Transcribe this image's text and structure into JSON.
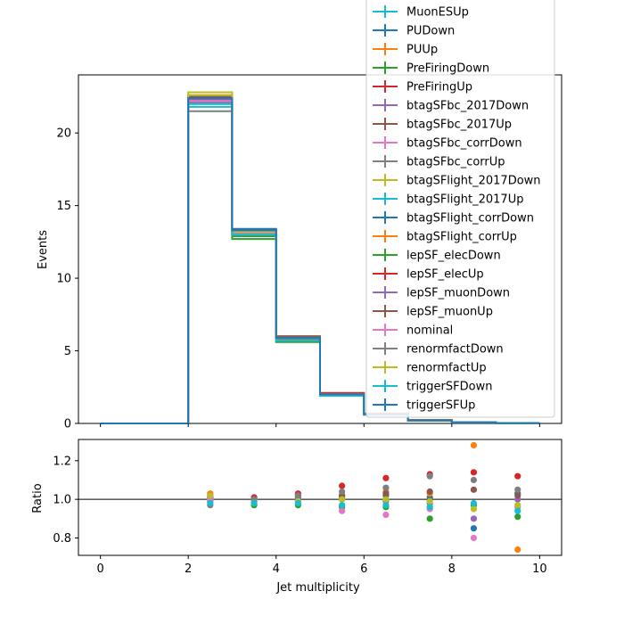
{
  "chart_data": [
    {
      "type": "line",
      "panel": "main",
      "step": true,
      "xlabel": "",
      "ylabel": "Events",
      "xlim": [
        -0.5,
        10.5
      ],
      "ylim": [
        0,
        24
      ],
      "yticks": [
        0,
        5,
        10,
        15,
        20
      ],
      "bin_edges": [
        0,
        1,
        2,
        3,
        4,
        5,
        6,
        7,
        8,
        9,
        10
      ],
      "legend_placement": "upper right (extends above plot)",
      "series": [
        {
          "name": "MuonESUp",
          "color": "#17becf",
          "values": [
            0,
            0,
            22.2,
            13.1,
            5.8,
            2.0,
            0.62,
            0.21,
            0.07,
            0.02
          ]
        },
        {
          "name": "PUDown",
          "color": "#1f77b4",
          "values": [
            0,
            0,
            22.5,
            13.3,
            5.9,
            2.0,
            0.63,
            0.21,
            0.07,
            0.02
          ]
        },
        {
          "name": "PUUp",
          "color": "#ff7f0e",
          "values": [
            0,
            0,
            22.3,
            13.2,
            5.9,
            2.0,
            0.64,
            0.22,
            0.08,
            0.02
          ]
        },
        {
          "name": "PreFiringDown",
          "color": "#2ca02c",
          "values": [
            0,
            0,
            22.0,
            12.7,
            5.6,
            1.9,
            0.6,
            0.19,
            0.07,
            0.02
          ]
        },
        {
          "name": "PreFiringUp",
          "color": "#d62728",
          "values": [
            0,
            0,
            22.6,
            13.3,
            6.0,
            2.1,
            0.68,
            0.24,
            0.08,
            0.02
          ]
        },
        {
          "name": "btagSFbc_2017Down",
          "color": "#9467bd",
          "values": [
            0,
            0,
            22.3,
            13.1,
            5.9,
            2.0,
            0.62,
            0.2,
            0.06,
            0.02
          ]
        },
        {
          "name": "btagSFbc_2017Up",
          "color": "#8c564b",
          "values": [
            0,
            0,
            22.4,
            13.2,
            6.0,
            2.0,
            0.64,
            0.22,
            0.07,
            0.02
          ]
        },
        {
          "name": "btagSFbc_corrDown",
          "color": "#e377c2",
          "values": [
            0,
            0,
            22.1,
            13.0,
            5.8,
            1.9,
            0.6,
            0.2,
            0.06,
            0.02
          ]
        },
        {
          "name": "btagSFbc_corrUp",
          "color": "#7f7f7f",
          "values": [
            0,
            0,
            21.5,
            13.0,
            5.9,
            2.0,
            0.65,
            0.22,
            0.08,
            0.02
          ]
        },
        {
          "name": "btagSFlight_2017Down",
          "color": "#bcbd22",
          "values": [
            0,
            0,
            22.8,
            13.0,
            5.8,
            2.0,
            0.62,
            0.21,
            0.07,
            0.02
          ]
        },
        {
          "name": "btagSFlight_2017Up",
          "color": "#17becf",
          "values": [
            0,
            0,
            21.8,
            12.9,
            5.7,
            1.9,
            0.61,
            0.2,
            0.07,
            0.02
          ]
        },
        {
          "name": "btagSFlight_corrDown",
          "color": "#1f77b4",
          "values": [
            0,
            0,
            22.4,
            13.4,
            5.9,
            2.0,
            0.62,
            0.21,
            0.07,
            0.02
          ]
        },
        {
          "name": "btagSFlight_corrUp",
          "color": "#ff7f0e",
          "values": [
            0,
            0,
            22.2,
            13.1,
            5.8,
            2.0,
            0.62,
            0.21,
            0.07,
            0.02
          ]
        },
        {
          "name": "lepSF_elecDown",
          "color": "#2ca02c",
          "values": [
            0,
            0,
            22.1,
            12.9,
            5.7,
            1.9,
            0.61,
            0.2,
            0.07,
            0.02
          ]
        },
        {
          "name": "lepSF_elecUp",
          "color": "#d62728",
          "values": [
            0,
            0,
            22.4,
            13.2,
            5.9,
            2.0,
            0.63,
            0.21,
            0.07,
            0.02
          ]
        },
        {
          "name": "lepSF_muonDown",
          "color": "#9467bd",
          "values": [
            0,
            0,
            22.1,
            13.0,
            5.8,
            1.9,
            0.61,
            0.2,
            0.07,
            0.02
          ]
        },
        {
          "name": "lepSF_muonUp",
          "color": "#8c564b",
          "values": [
            0,
            0,
            22.5,
            13.3,
            5.9,
            2.0,
            0.63,
            0.21,
            0.07,
            0.02
          ]
        },
        {
          "name": "nominal",
          "color": "#e377c2",
          "values": [
            0,
            0,
            22.2,
            13.1,
            5.8,
            2.0,
            0.62,
            0.21,
            0.07,
            0.02
          ]
        },
        {
          "name": "renormfactDown",
          "color": "#7f7f7f",
          "values": [
            0,
            0,
            22.0,
            13.0,
            5.8,
            1.9,
            0.61,
            0.2,
            0.07,
            0.02
          ]
        },
        {
          "name": "renormfactUp",
          "color": "#bcbd22",
          "values": [
            0,
            0,
            22.6,
            13.2,
            5.9,
            2.0,
            0.63,
            0.21,
            0.07,
            0.02
          ]
        },
        {
          "name": "triggerSFDown",
          "color": "#17becf",
          "values": [
            0,
            0,
            22.0,
            13.0,
            5.7,
            1.9,
            0.61,
            0.2,
            0.07,
            0.02
          ]
        },
        {
          "name": "triggerSFUp",
          "color": "#1f77b4",
          "values": [
            0,
            0,
            22.4,
            13.3,
            5.9,
            2.0,
            0.63,
            0.21,
            0.07,
            0.02
          ]
        }
      ]
    },
    {
      "type": "scatter",
      "panel": "ratio",
      "xlabel": "Jet multiplicity",
      "ylabel": "Ratio",
      "xlim": [
        -0.5,
        10.5
      ],
      "ylim": [
        0.71,
        1.31
      ],
      "xticks": [
        0,
        2,
        4,
        6,
        8,
        10
      ],
      "yticks": [
        0.8,
        1.0,
        1.2
      ],
      "reference_line": 1.0,
      "x": [
        2.5,
        3.5,
        4.5,
        5.5,
        6.5,
        7.5,
        8.5,
        9.5
      ],
      "series": [
        {
          "color": "#1f77b4",
          "values": [
            1.01,
            1.01,
            1.02,
            1.01,
            1.02,
            1.01,
            0.85,
            1.03
          ]
        },
        {
          "color": "#ff7f0e",
          "values": [
            1.03,
            1.0,
            1.01,
            1.02,
            1.04,
            1.03,
            1.28,
            0.74
          ]
        },
        {
          "color": "#2ca02c",
          "values": [
            0.99,
            0.97,
            0.97,
            0.96,
            0.96,
            0.9,
            0.97,
            0.91
          ]
        },
        {
          "color": "#d62728",
          "values": [
            1.02,
            1.01,
            1.03,
            1.07,
            1.11,
            1.13,
            1.14,
            1.12
          ]
        },
        {
          "color": "#9467bd",
          "values": [
            1.0,
            0.99,
            1.01,
            1.0,
            0.99,
            0.98,
            0.9,
            1.0
          ]
        },
        {
          "color": "#8c564b",
          "values": [
            1.01,
            1.0,
            1.02,
            1.02,
            1.03,
            1.04,
            1.05,
            1.02
          ]
        },
        {
          "color": "#e377c2",
          "values": [
            1.0,
            0.99,
            0.99,
            0.94,
            0.92,
            0.95,
            0.8,
            0.96
          ]
        },
        {
          "color": "#7f7f7f",
          "values": [
            0.97,
            1.0,
            1.02,
            1.04,
            1.06,
            1.12,
            1.1,
            1.05
          ]
        },
        {
          "color": "#bcbd22",
          "values": [
            1.02,
            0.98,
            0.99,
            1.0,
            1.0,
            0.99,
            0.95,
            0.97
          ]
        },
        {
          "color": "#17becf",
          "values": [
            0.98,
            0.98,
            0.98,
            0.97,
            0.97,
            0.96,
            0.98,
            0.94
          ]
        }
      ]
    }
  ]
}
